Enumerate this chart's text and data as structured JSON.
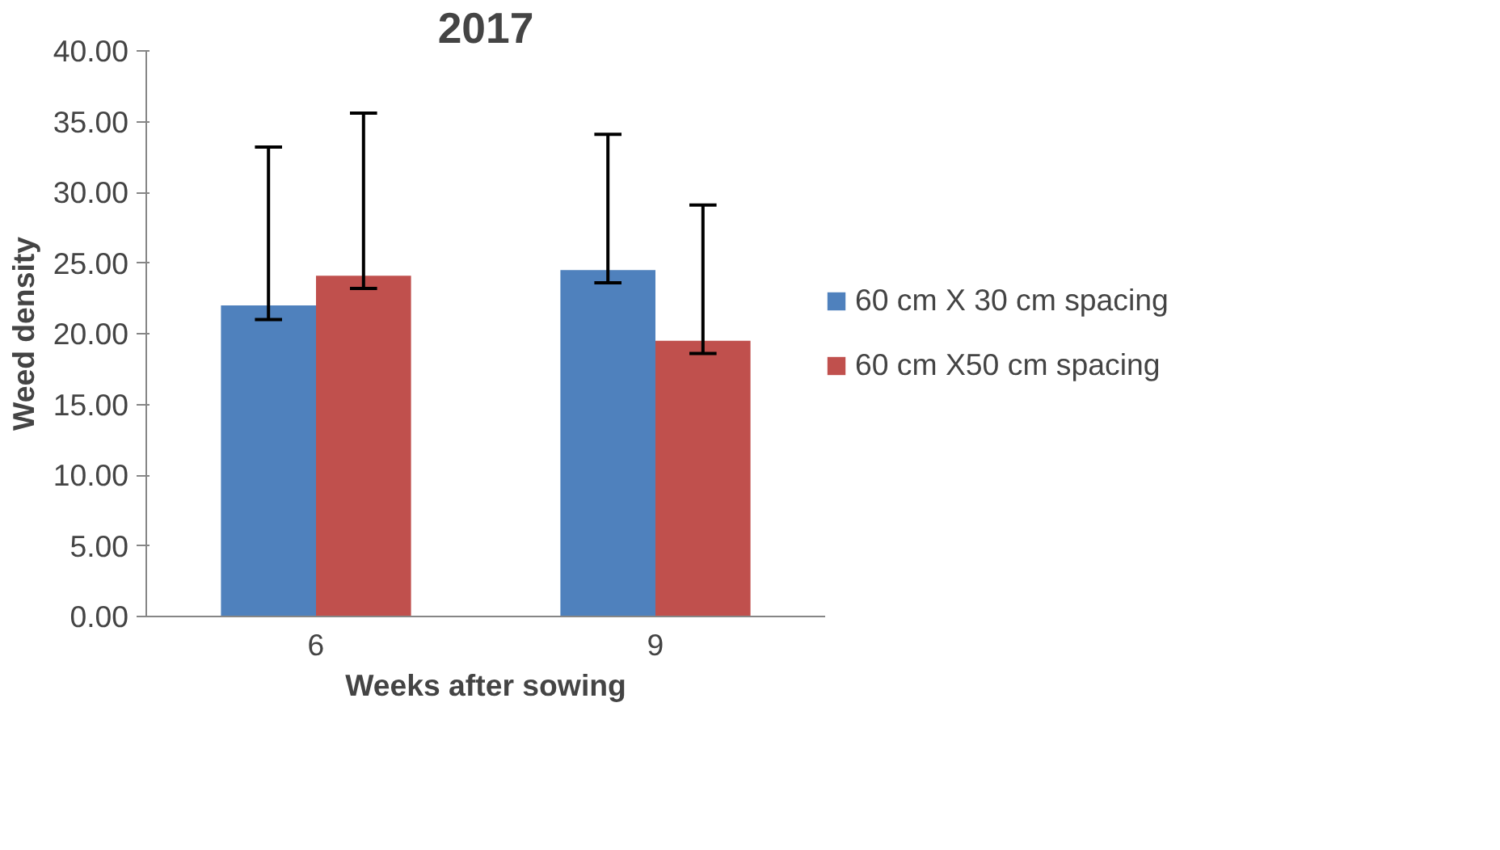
{
  "chart_data": {
    "type": "bar",
    "title": "2017",
    "xlabel": "Weeks after sowing",
    "ylabel": "Weed density",
    "categories": [
      "6",
      "9"
    ],
    "series": [
      {
        "name": "60 cm X 30 cm spacing",
        "color": "#4f81bd",
        "values": [
          22.0,
          24.5
        ],
        "errors": [
          [
            21.0,
            33.2
          ],
          [
            23.6,
            34.1
          ]
        ]
      },
      {
        "name": "60 cm X50 cm spacing",
        "color": "#c0504d",
        "values": [
          24.1,
          19.5
        ],
        "errors": [
          [
            23.2,
            35.6
          ],
          [
            18.6,
            29.1
          ]
        ]
      }
    ],
    "ylim": [
      0,
      40
    ],
    "yticks": [
      {
        "value": 0,
        "label": "0.00"
      },
      {
        "value": 5,
        "label": "5.00"
      },
      {
        "value": 10,
        "label": "10.00"
      },
      {
        "value": 15,
        "label": "15.00"
      },
      {
        "value": 20,
        "label": "20.00"
      },
      {
        "value": 25,
        "label": "25.00"
      },
      {
        "value": 30,
        "label": "30.00"
      },
      {
        "value": 35,
        "label": "35.00"
      },
      {
        "value": 40,
        "label": "40.00"
      }
    ],
    "grid": false,
    "legend": "right"
  }
}
